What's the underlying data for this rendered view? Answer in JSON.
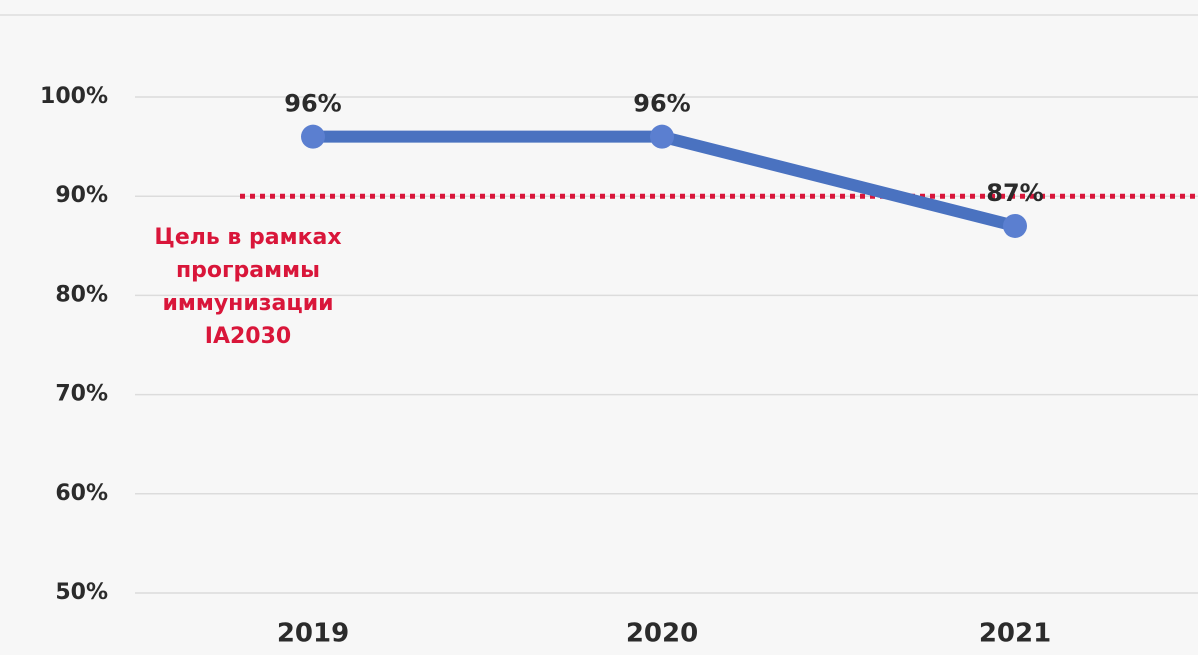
{
  "chart_data": {
    "type": "line",
    "categories": [
      "2019",
      "2020",
      "2021"
    ],
    "series": [
      {
        "name": null,
        "color": "#4a72c0",
        "values": [
          96,
          96,
          87
        ],
        "value_labels": [
          "96%",
          "96%",
          "87%"
        ]
      }
    ],
    "ylim": [
      50,
      100
    ],
    "yticks": [
      {
        "value": 50,
        "label": "50%"
      },
      {
        "value": 60,
        "label": "60%"
      },
      {
        "value": 70,
        "label": "70%"
      },
      {
        "value": 80,
        "label": "80%"
      },
      {
        "value": 90,
        "label": "90%"
      },
      {
        "value": 100,
        "label": "100%"
      }
    ],
    "grid": true,
    "target": {
      "value": 90,
      "color": "#d9163a",
      "label": [
        "Цель в рамках",
        "программы",
        "иммунизации",
        "IA2030"
      ]
    }
  }
}
